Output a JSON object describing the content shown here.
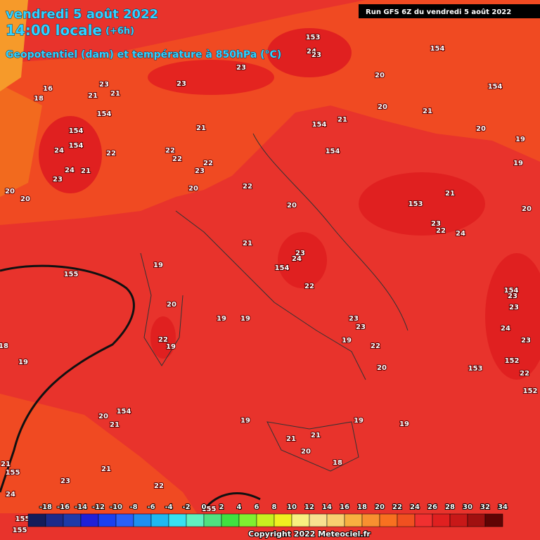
{
  "header": {
    "title_line1": "vendredi 5 août 2022",
    "title_line2": "14:00 locale",
    "offset": "(+6h)",
    "subtitle": "Geopotentiel (dam) et température à 850hPa (°C)",
    "run": "Run GFS 6Z du vendredi 5 août 2022"
  },
  "map_labels": [
    "153",
    "24",
    "23",
    "154",
    "20",
    "20",
    "21",
    "154",
    "20",
    "19",
    "23",
    "23",
    "21",
    "21",
    "23",
    "154",
    "18",
    "16",
    "154",
    "154",
    "24",
    "22",
    "23",
    "24",
    "21",
    "20",
    "20",
    "21",
    "22",
    "22",
    "23",
    "22",
    "20",
    "154",
    "21",
    "154",
    "22",
    "19",
    "21",
    "20",
    "20",
    "153",
    "23",
    "24",
    "22",
    "21",
    "23",
    "24",
    "154",
    "22",
    "155",
    "19",
    "20",
    "22",
    "19",
    "19",
    "19",
    "23",
    "23",
    "19",
    "22",
    "20",
    "153",
    "19",
    "18",
    "154",
    "23",
    "23",
    "24",
    "23",
    "152",
    "22",
    "152",
    "154",
    "20",
    "21",
    "19",
    "19",
    "19",
    "21",
    "21",
    "20",
    "18",
    "21",
    "155",
    "23",
    "21",
    "24",
    "22",
    "155",
    "155",
    "155"
  ],
  "colorbar": {
    "colors": [
      "#141c5a",
      "#1c2a8a",
      "#1e3aa8",
      "#2020d8",
      "#1a40f0",
      "#2a60f8",
      "#1e90f0",
      "#20b8f0",
      "#38e0f0",
      "#60f0c0",
      "#50e080",
      "#40e040",
      "#80f030",
      "#c8f020",
      "#f0f020",
      "#f8f080",
      "#f8e090",
      "#f8d070",
      "#f8b040",
      "#f89030",
      "#f87020",
      "#f05020",
      "#f03030",
      "#e02020",
      "#c81818",
      "#a01010",
      "#600404"
    ],
    "labels": [
      -18,
      -16,
      -14,
      -12,
      -10,
      -8,
      -6,
      -4,
      -2,
      0,
      2,
      4,
      6,
      8,
      10,
      12,
      14,
      16,
      18,
      20,
      22,
      24,
      26,
      28,
      30,
      32,
      34
    ]
  },
  "footer": {
    "copyright": "Copyright 2022 Meteociel.fr"
  }
}
